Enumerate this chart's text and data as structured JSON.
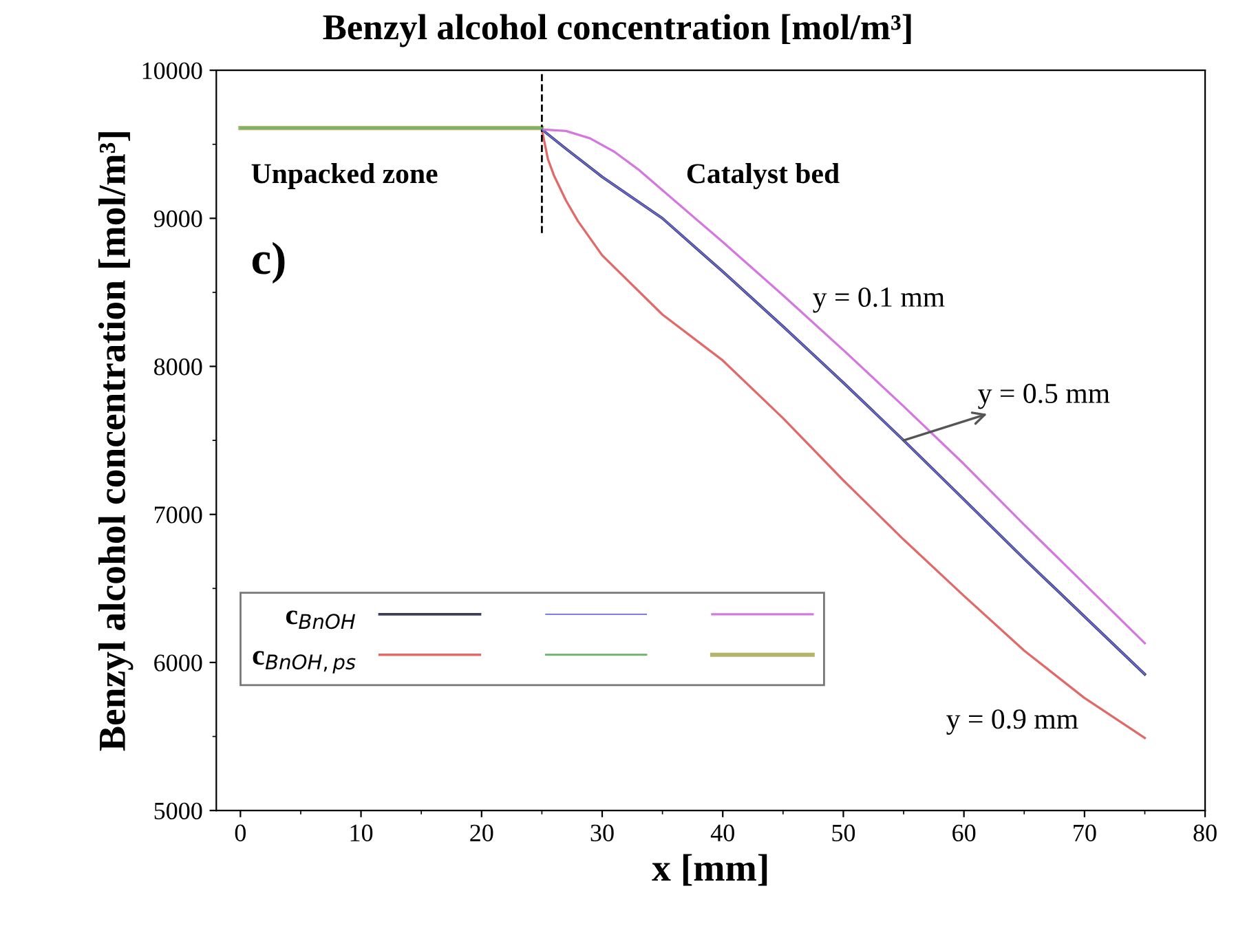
{
  "chart_data": {
    "type": "line",
    "title": "Benzyl alcohol concentration [mol/m³]",
    "xlabel": "x [mm]",
    "ylabel": "Benzyl alcohol concentration [mol/m³]",
    "xlim": [
      -2,
      80
    ],
    "xticks": [
      0,
      10,
      20,
      30,
      40,
      50,
      60,
      70,
      80
    ],
    "ylim": [
      5000,
      10000
    ],
    "yticks": [
      5000,
      6000,
      7000,
      8000,
      9000,
      10000
    ],
    "grid": false,
    "legend": "lower left",
    "marker": "none",
    "line_style": "solid",
    "series": [
      {
        "name": "c$_{BnOH}$",
        "color": "#3c3c5e",
        "x": [
          25,
          27,
          30,
          35,
          40,
          45,
          50,
          55,
          60,
          65,
          70,
          75
        ],
        "values": [
          9600,
          9470,
          9280,
          9000,
          8640,
          8270,
          7890,
          7500,
          7100,
          6700,
          6310,
          5920
        ]
      },
      {
        "name": "c$_{BnOH,ps}$",
        "color": "#e06a6a",
        "x": [
          25,
          25.5,
          26,
          27,
          28,
          30,
          35,
          40,
          45,
          50,
          55,
          60,
          65,
          70,
          75
        ],
        "values": [
          9600,
          9400,
          9290,
          9120,
          8980,
          8750,
          8350,
          8040,
          7650,
          7230,
          6830,
          6450,
          6080,
          5760,
          5490
        ]
      },
      {
        "color": "#6a6ae0",
        "x": [
          25,
          27,
          30,
          35,
          40,
          45,
          50,
          55,
          60,
          65,
          70,
          75
        ],
        "values": [
          9600,
          9470,
          9280,
          9000,
          8640,
          8270,
          7890,
          7500,
          7100,
          6700,
          6310,
          5920
        ]
      },
      {
        "color": "#6ab46a",
        "x": [
          0,
          25
        ],
        "values": [
          9610,
          9610
        ]
      },
      {
        "color": "#d478e0",
        "x": [
          25,
          27,
          29,
          31,
          33,
          35,
          40,
          45,
          50,
          55,
          60,
          65,
          70,
          75
        ],
        "values": [
          9600,
          9590,
          9540,
          9450,
          9330,
          9190,
          8840,
          8480,
          8110,
          7730,
          7340,
          6930,
          6530,
          6130
        ]
      },
      {
        "color": "#b4b46a",
        "x": [
          0,
          25
        ],
        "values": [
          9610,
          9610
        ]
      }
    ],
    "ref_lines": [
      {
        "axis": "x",
        "value": 25,
        "line_style": "dashed",
        "color": "#000000"
      }
    ],
    "annotations": [
      "Unpacked zone",
      "Catalyst bed",
      "c)",
      "y = 0.1 mm",
      {
        "text": "y = 0.5 mm",
        "x": 55,
        "y": 7500
      },
      "y = 0.9 mm"
    ]
  }
}
